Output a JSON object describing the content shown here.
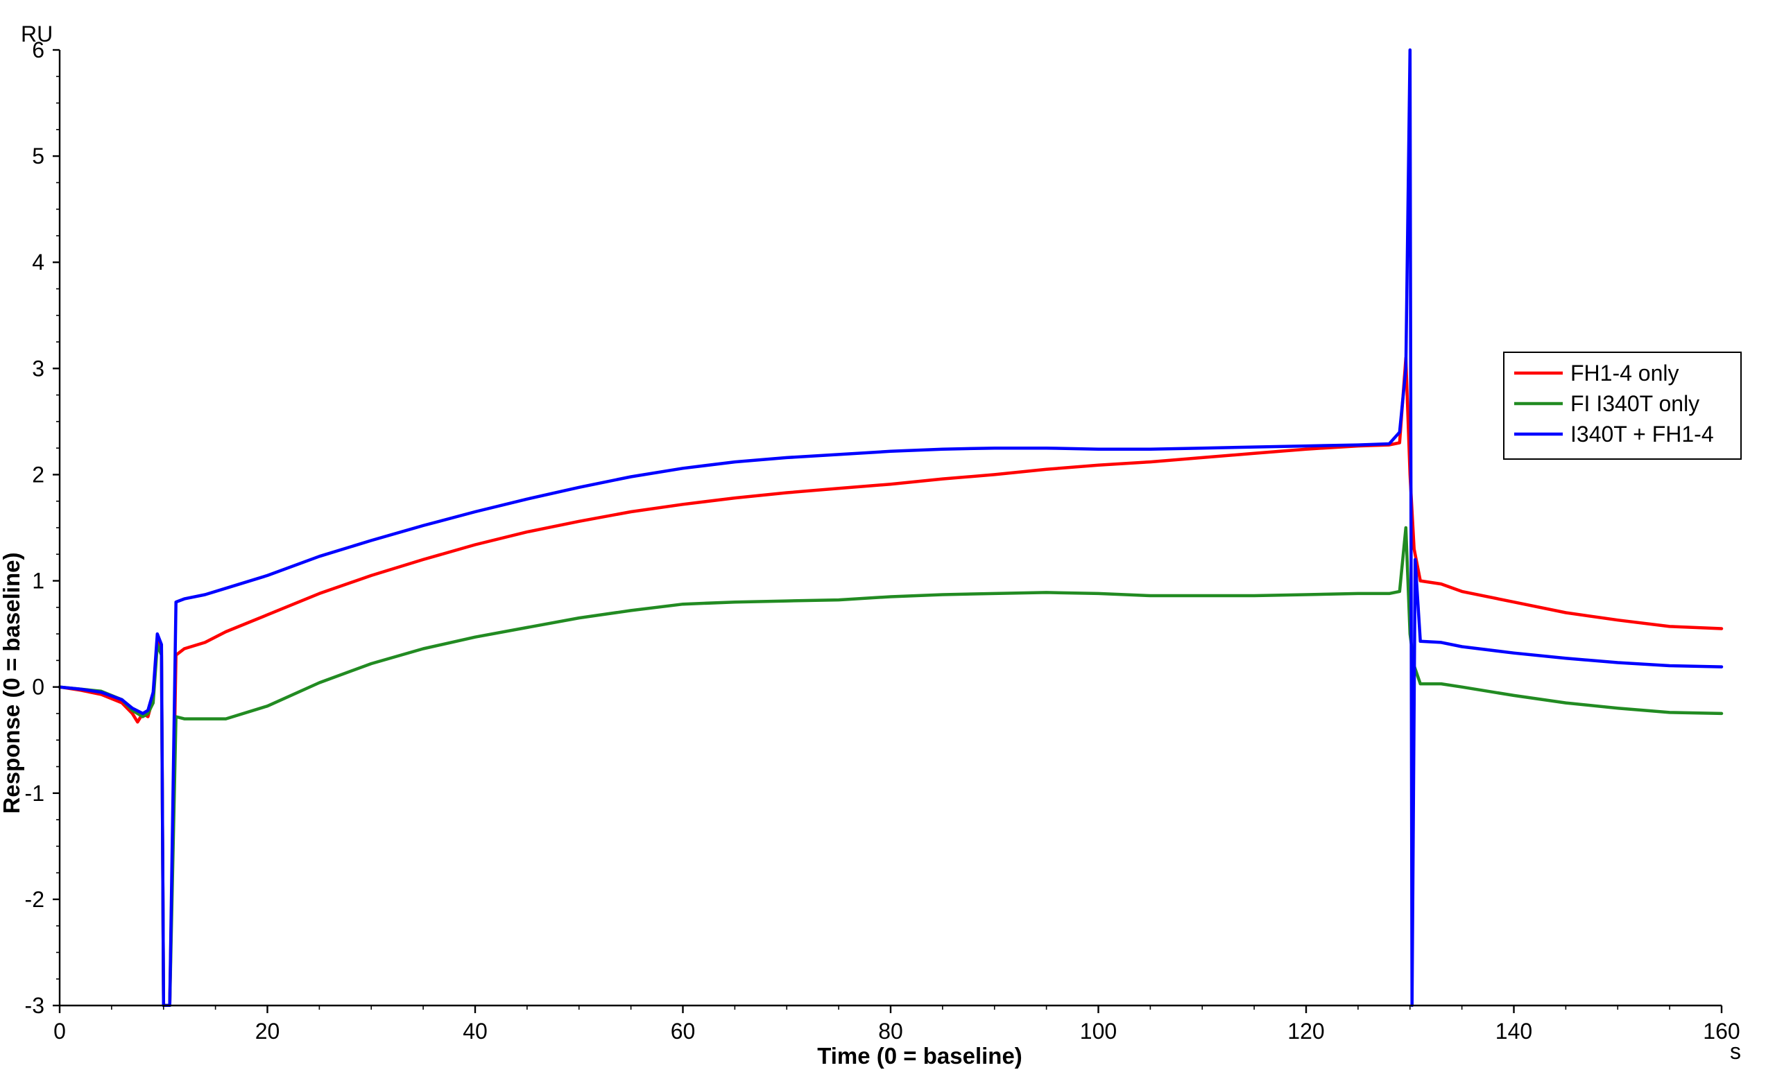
{
  "chart_data": {
    "type": "line",
    "title": "",
    "xlabel": "Time (0 = baseline)",
    "ylabel": "Response (0 = baseline)",
    "x_unit": "s",
    "y_unit": "RU",
    "xlim": [
      0,
      160
    ],
    "ylim": [
      -3,
      6
    ],
    "x_ticks": [
      0,
      20,
      40,
      60,
      80,
      100,
      120,
      140,
      160
    ],
    "y_ticks": [
      -3,
      -2,
      -1,
      0,
      1,
      2,
      3,
      4,
      5,
      6
    ],
    "grid": false,
    "legend_position": "right",
    "series": [
      {
        "name": "FH1-4 only",
        "color": "#ff0000",
        "points": [
          [
            0,
            0
          ],
          [
            2,
            -0.03
          ],
          [
            4,
            -0.07
          ],
          [
            6,
            -0.15
          ],
          [
            7,
            -0.25
          ],
          [
            7.5,
            -0.33
          ],
          [
            8,
            -0.25
          ],
          [
            8.5,
            -0.28
          ],
          [
            9,
            -0.1
          ],
          [
            9.4,
            0.45
          ],
          [
            9.8,
            0.35
          ],
          [
            10,
            -3
          ],
          [
            10.6,
            -3
          ],
          [
            11.2,
            0.3
          ],
          [
            12,
            0.36
          ],
          [
            14,
            0.42
          ],
          [
            16,
            0.52
          ],
          [
            20,
            0.68
          ],
          [
            25,
            0.88
          ],
          [
            30,
            1.05
          ],
          [
            35,
            1.2
          ],
          [
            40,
            1.34
          ],
          [
            45,
            1.46
          ],
          [
            50,
            1.56
          ],
          [
            55,
            1.65
          ],
          [
            60,
            1.72
          ],
          [
            65,
            1.78
          ],
          [
            70,
            1.83
          ],
          [
            75,
            1.87
          ],
          [
            80,
            1.91
          ],
          [
            85,
            1.96
          ],
          [
            90,
            2.0
          ],
          [
            95,
            2.05
          ],
          [
            100,
            2.09
          ],
          [
            105,
            2.12
          ],
          [
            110,
            2.16
          ],
          [
            115,
            2.2
          ],
          [
            120,
            2.24
          ],
          [
            125,
            2.27
          ],
          [
            128,
            2.28
          ],
          [
            129,
            2.3
          ],
          [
            129.6,
            3.1
          ],
          [
            130,
            2.0
          ],
          [
            130.4,
            1.3
          ],
          [
            131,
            1.0
          ],
          [
            133,
            0.97
          ],
          [
            135,
            0.9
          ],
          [
            140,
            0.8
          ],
          [
            145,
            0.7
          ],
          [
            150,
            0.63
          ],
          [
            155,
            0.57
          ],
          [
            160,
            0.55
          ]
        ]
      },
      {
        "name": "FI I340T only",
        "color": "#228b22",
        "points": [
          [
            0,
            0
          ],
          [
            2,
            -0.02
          ],
          [
            4,
            -0.04
          ],
          [
            6,
            -0.12
          ],
          [
            7,
            -0.22
          ],
          [
            8,
            -0.28
          ],
          [
            8.5,
            -0.25
          ],
          [
            9,
            -0.15
          ],
          [
            9.4,
            0.4
          ],
          [
            9.8,
            0.3
          ],
          [
            10,
            -3
          ],
          [
            10.6,
            -3
          ],
          [
            11.2,
            -0.28
          ],
          [
            12,
            -0.3
          ],
          [
            14,
            -0.3
          ],
          [
            16,
            -0.3
          ],
          [
            20,
            -0.18
          ],
          [
            25,
            0.04
          ],
          [
            30,
            0.22
          ],
          [
            35,
            0.36
          ],
          [
            40,
            0.47
          ],
          [
            45,
            0.56
          ],
          [
            50,
            0.65
          ],
          [
            55,
            0.72
          ],
          [
            60,
            0.78
          ],
          [
            65,
            0.8
          ],
          [
            70,
            0.81
          ],
          [
            75,
            0.82
          ],
          [
            80,
            0.85
          ],
          [
            85,
            0.87
          ],
          [
            90,
            0.88
          ],
          [
            95,
            0.89
          ],
          [
            100,
            0.88
          ],
          [
            105,
            0.86
          ],
          [
            110,
            0.86
          ],
          [
            115,
            0.86
          ],
          [
            120,
            0.87
          ],
          [
            125,
            0.88
          ],
          [
            128,
            0.88
          ],
          [
            129,
            0.9
          ],
          [
            129.6,
            1.5
          ],
          [
            130,
            0.5
          ],
          [
            130.4,
            0.2
          ],
          [
            131,
            0.03
          ],
          [
            133,
            0.03
          ],
          [
            135,
            0.0
          ],
          [
            140,
            -0.08
          ],
          [
            145,
            -0.15
          ],
          [
            150,
            -0.2
          ],
          [
            155,
            -0.24
          ],
          [
            160,
            -0.25
          ]
        ]
      },
      {
        "name": "I340T + FH1-4",
        "color": "#0000ff",
        "points": [
          [
            0,
            0
          ],
          [
            2,
            -0.02
          ],
          [
            4,
            -0.05
          ],
          [
            6,
            -0.12
          ],
          [
            7,
            -0.2
          ],
          [
            8,
            -0.25
          ],
          [
            8.5,
            -0.22
          ],
          [
            9,
            -0.05
          ],
          [
            9.4,
            0.5
          ],
          [
            9.8,
            0.4
          ],
          [
            10,
            -3
          ],
          [
            10.6,
            -3
          ],
          [
            11.2,
            0.8
          ],
          [
            12,
            0.83
          ],
          [
            14,
            0.87
          ],
          [
            16,
            0.93
          ],
          [
            20,
            1.05
          ],
          [
            25,
            1.23
          ],
          [
            30,
            1.38
          ],
          [
            35,
            1.52
          ],
          [
            40,
            1.65
          ],
          [
            45,
            1.77
          ],
          [
            50,
            1.88
          ],
          [
            55,
            1.98
          ],
          [
            60,
            2.06
          ],
          [
            65,
            2.12
          ],
          [
            70,
            2.16
          ],
          [
            75,
            2.19
          ],
          [
            80,
            2.22
          ],
          [
            85,
            2.24
          ],
          [
            90,
            2.25
          ],
          [
            95,
            2.25
          ],
          [
            100,
            2.24
          ],
          [
            105,
            2.24
          ],
          [
            110,
            2.25
          ],
          [
            115,
            2.26
          ],
          [
            120,
            2.27
          ],
          [
            125,
            2.28
          ],
          [
            128,
            2.29
          ],
          [
            129,
            2.4
          ],
          [
            129.6,
            3.0
          ],
          [
            130,
            6.0
          ],
          [
            130.2,
            -3
          ],
          [
            130.5,
            1.2
          ],
          [
            131,
            0.43
          ],
          [
            133,
            0.42
          ],
          [
            135,
            0.38
          ],
          [
            140,
            0.32
          ],
          [
            145,
            0.27
          ],
          [
            150,
            0.23
          ],
          [
            155,
            0.2
          ],
          [
            160,
            0.19
          ]
        ]
      }
    ]
  }
}
